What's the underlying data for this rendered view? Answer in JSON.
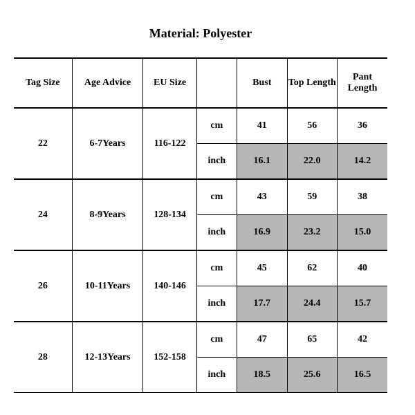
{
  "title": "Material: Polyester",
  "headers": {
    "tag": "Tag Size",
    "age": "Age Advice",
    "eu": "EU Size",
    "unit": "",
    "bust": "Bust",
    "top": "Top Length",
    "pant": "Pant Length"
  },
  "units": {
    "cm": "cm",
    "inch": "inch"
  },
  "rows": [
    {
      "tag": "22",
      "age": "6-7Years",
      "eu": "116-122",
      "cm": {
        "bust": "41",
        "top": "56",
        "pant": "36"
      },
      "inch": {
        "bust": "16.1",
        "top": "22.0",
        "pant": "14.2"
      }
    },
    {
      "tag": "24",
      "age": "8-9Years",
      "eu": "128-134",
      "cm": {
        "bust": "43",
        "top": "59",
        "pant": "38"
      },
      "inch": {
        "bust": "16.9",
        "top": "23.2",
        "pant": "15.0"
      }
    },
    {
      "tag": "26",
      "age": "10-11Years",
      "eu": "140-146",
      "cm": {
        "bust": "45",
        "top": "62",
        "pant": "40"
      },
      "inch": {
        "bust": "17.7",
        "top": "24.4",
        "pant": "15.7"
      }
    },
    {
      "tag": "28",
      "age": "12-13Years",
      "eu": "152-158",
      "cm": {
        "bust": "47",
        "top": "65",
        "pant": "42"
      },
      "inch": {
        "bust": "18.5",
        "top": "25.6",
        "pant": "16.5"
      }
    }
  ],
  "style": {
    "shade_color": "#b6b6b6",
    "background": "#ffffff",
    "border_color": "#000000",
    "title_fontsize": 18,
    "cell_fontsize": 14,
    "font_family": "Times New Roman"
  }
}
